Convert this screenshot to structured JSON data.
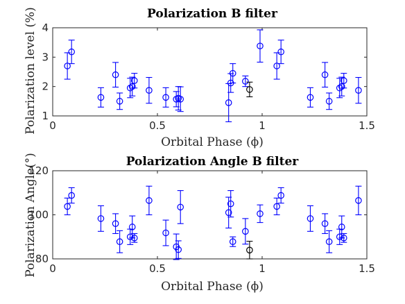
{
  "chart_data": [
    {
      "type": "scatter",
      "title": "Polarization B filter",
      "xlabel": "Orbital Phase (ϕ)",
      "ylabel": "Polarization level (%)",
      "xlim": [
        0,
        1.5
      ],
      "ylim": [
        1,
        4
      ],
      "xticks": [
        "0",
        "0.5",
        "1",
        "1.5"
      ],
      "yticks": [
        "1",
        "2",
        "3",
        "4"
      ],
      "grid": false,
      "colors": {
        "series": "#0000ff",
        "highlight": "#000000"
      },
      "series": [
        {
          "color": "#0000ff",
          "x": [
            0.07,
            0.09,
            0.23,
            0.3,
            0.32,
            0.37,
            0.38,
            0.39,
            0.46,
            0.54,
            0.59,
            0.6,
            0.61,
            0.84,
            0.85,
            0.86,
            0.92,
            0.99,
            1.07,
            1.09,
            1.23,
            1.3,
            1.32,
            1.37,
            1.38,
            1.39,
            1.46
          ],
          "y": [
            2.7,
            3.18,
            1.63,
            2.4,
            1.5,
            1.95,
            2.0,
            2.2,
            1.87,
            1.63,
            1.57,
            1.6,
            1.57,
            1.45,
            2.12,
            2.45,
            2.18,
            3.38,
            2.7,
            3.18,
            1.63,
            2.4,
            1.5,
            1.95,
            2.0,
            2.2,
            1.87
          ],
          "err": [
            0.45,
            0.4,
            0.33,
            0.42,
            0.28,
            0.33,
            0.32,
            0.25,
            0.44,
            0.33,
            0.26,
            0.4,
            0.42,
            0.65,
            0.32,
            0.33,
            0.18,
            0.55,
            0.45,
            0.4,
            0.33,
            0.42,
            0.28,
            0.33,
            0.32,
            0.25,
            0.44
          ]
        },
        {
          "color": "#000000",
          "x": [
            0.94
          ],
          "y": [
            1.9
          ],
          "err": [
            0.25
          ]
        }
      ]
    },
    {
      "type": "scatter",
      "title": "Polarization Angle B filter",
      "xlabel": "Orbital Phase (ϕ)",
      "ylabel": "Polarization Angle(°)",
      "xlim": [
        0,
        1.5
      ],
      "ylim": [
        80,
        120
      ],
      "xticks": [
        "0",
        "0.5",
        "1",
        "1.5"
      ],
      "yticks": [
        "80",
        "100",
        "120"
      ],
      "grid": false,
      "colors": {
        "series": "#0000ff",
        "highlight": "#000000"
      },
      "series": [
        {
          "color": "#0000ff",
          "x": [
            0.07,
            0.09,
            0.23,
            0.3,
            0.32,
            0.37,
            0.38,
            0.39,
            0.46,
            0.54,
            0.59,
            0.6,
            0.61,
            0.84,
            0.85,
            0.86,
            0.92,
            0.99,
            1.07,
            1.09,
            1.23,
            1.3,
            1.32,
            1.37,
            1.38,
            1.39,
            1.46
          ],
          "y": [
            103.8,
            108.8,
            98.3,
            96.0,
            87.8,
            90.0,
            94.5,
            89.5,
            106.5,
            91.8,
            85.5,
            84.2,
            103.5,
            101.0,
            105.0,
            87.8,
            92.5,
            100.5,
            103.8,
            108.8,
            98.3,
            96.0,
            87.8,
            90.0,
            94.5,
            89.5,
            106.5
          ],
          "err": [
            3.8,
            3.5,
            5.8,
            4.5,
            5.0,
            3.5,
            5.0,
            2.0,
            6.5,
            5.8,
            5.8,
            4.0,
            7.5,
            7.0,
            6.0,
            2.2,
            5.8,
            4.0,
            3.8,
            3.5,
            5.8,
            4.5,
            5.0,
            3.5,
            5.0,
            2.0,
            6.5
          ]
        },
        {
          "color": "#000000",
          "x": [
            0.94
          ],
          "y": [
            84.0
          ],
          "err": [
            4.0
          ]
        }
      ]
    }
  ]
}
